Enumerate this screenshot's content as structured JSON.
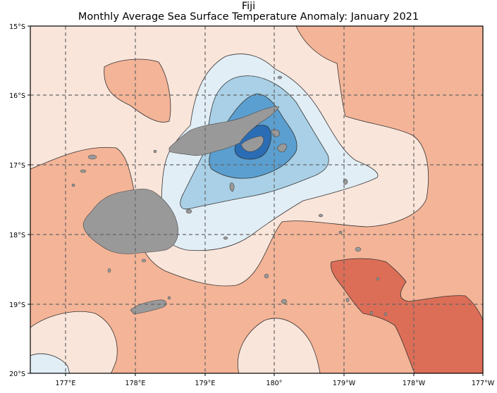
{
  "title_line1": "Fiji",
  "title_line2": "Monthly Average Sea Surface Temperature Anomaly: January 2021",
  "map": {
    "region": "Fiji",
    "variable": "Sea Surface Temperature Anomaly",
    "period": "January 2021",
    "lon_range": [
      "176.5°E",
      "177°W"
    ],
    "lat_range": [
      "15°S",
      "20°S"
    ],
    "gridlines": true,
    "colormap_levels": {
      "strong_negative": "#2166ac",
      "negative": "#4393c3",
      "weak_negative": "#92c5de",
      "very_weak_negative": "#d1e5f0",
      "near_zero_positive": "#fddbc7",
      "weak_positive": "#f4a582",
      "positive": "#d6604d",
      "land": "#969696"
    }
  },
  "x_ticks": [
    "177°E",
    "178°E",
    "179°E",
    "180°",
    "179°W",
    "178°W",
    "177°W"
  ],
  "y_ticks": [
    "15°S",
    "16°S",
    "17°S",
    "18°S",
    "19°S",
    "20°S"
  ]
}
